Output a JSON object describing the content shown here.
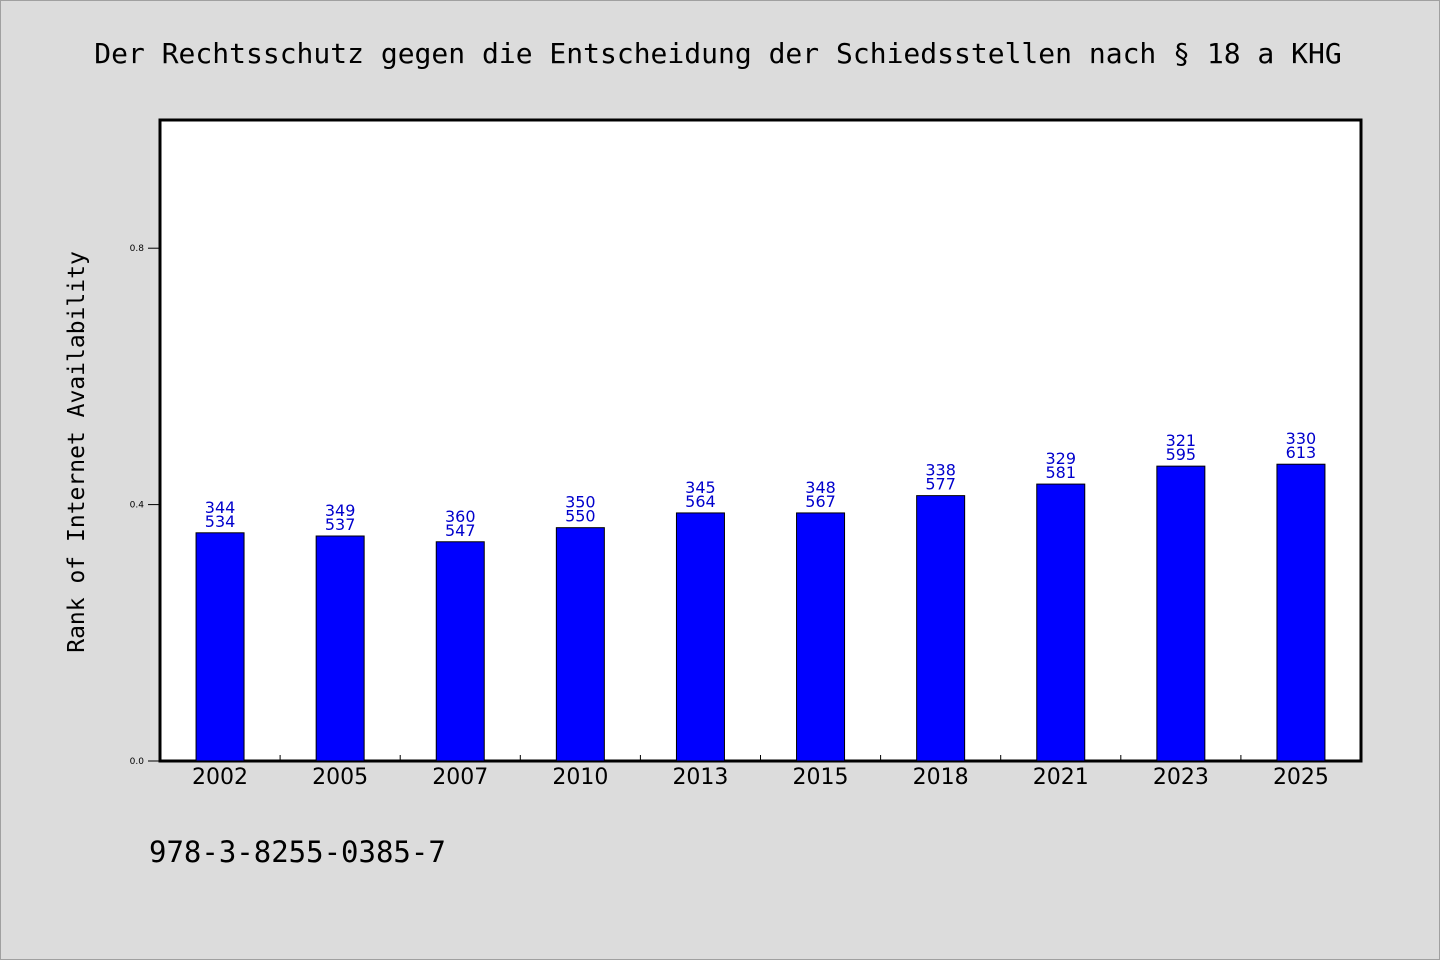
{
  "chart_data": {
    "type": "bar",
    "title": "Der Rechtsschutz gegen die Entscheidung der Schiedsstellen nach § 18 a KHG",
    "xlabel": "",
    "ylabel": "Rank of Internet Availability",
    "categories": [
      "2002",
      "2005",
      "2007",
      "2010",
      "2013",
      "2015",
      "2018",
      "2021",
      "2023",
      "2025"
    ],
    "series": [
      {
        "values": [
          0.356,
          0.351,
          0.342,
          0.364,
          0.387,
          0.387,
          0.414,
          0.432,
          0.46,
          0.463
        ],
        "data_labels": [
          [
            "344",
            "534"
          ],
          [
            "349",
            "537"
          ],
          [
            "360",
            "547"
          ],
          [
            "350",
            "550"
          ],
          [
            "345",
            "564"
          ],
          [
            "348",
            "567"
          ],
          [
            "338",
            "577"
          ],
          [
            "329",
            "581"
          ],
          [
            "321",
            "595"
          ],
          [
            "330",
            "613"
          ]
        ]
      }
    ],
    "ylim": [
      0,
      1.0
    ],
    "yticks": [
      "0.0",
      "0.4",
      "0.8"
    ],
    "grid": false,
    "bar_color": "#0000ff",
    "label_color": "#0000cc",
    "footnote": "978-3-8255-0385-7"
  }
}
